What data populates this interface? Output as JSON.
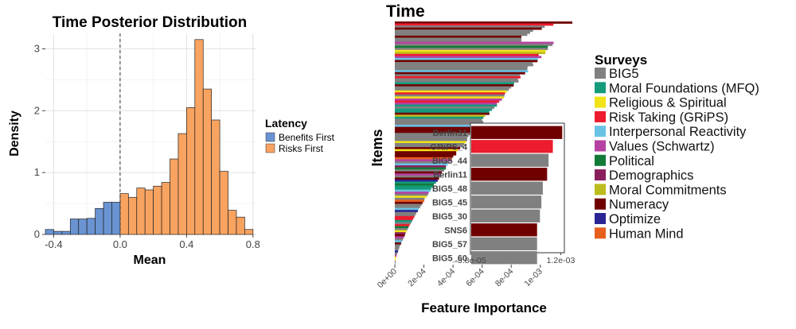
{
  "chart_data": [
    {
      "type": "bar",
      "subtype": "histogram",
      "title": "Time Posterior Distribution",
      "xlabel": "Mean",
      "ylabel": "Density",
      "xlim": [
        -0.45,
        0.82
      ],
      "ylim": [
        0,
        3.25
      ],
      "x_ticks": [
        "-0.4",
        "0.0",
        "0.4",
        "0.8"
      ],
      "x_tick_values": [
        -0.4,
        0.0,
        0.4,
        0.8
      ],
      "y_ticks": [
        "0",
        "1",
        "2",
        "3"
      ],
      "y_tick_values": [
        0,
        1,
        2,
        3
      ],
      "grid": true,
      "reference_line_x": 0,
      "legend": {
        "title": "Latency",
        "position": "right",
        "entries": [
          "Benefits First",
          "Risks First"
        ]
      },
      "series": [
        {
          "name": "Benefits First",
          "color": "#6a93d2",
          "bins": [
            [
              -0.45,
              -0.4
            ],
            [
              -0.4,
              -0.35
            ],
            [
              -0.35,
              -0.3
            ],
            [
              -0.3,
              -0.25
            ],
            [
              -0.25,
              -0.2
            ],
            [
              -0.2,
              -0.15
            ],
            [
              -0.15,
              -0.1
            ],
            [
              -0.1,
              -0.05
            ],
            [
              -0.05,
              0.0
            ]
          ],
          "values": [
            0.08,
            0.05,
            0.05,
            0.25,
            0.25,
            0.26,
            0.42,
            0.52,
            0.52
          ]
        },
        {
          "name": "Risks First",
          "color": "#f9a361",
          "bins": [
            [
              0.0,
              0.05
            ],
            [
              0.05,
              0.1
            ],
            [
              0.1,
              0.15
            ],
            [
              0.15,
              0.2
            ],
            [
              0.2,
              0.25
            ],
            [
              0.25,
              0.3
            ],
            [
              0.3,
              0.35
            ],
            [
              0.35,
              0.4
            ],
            [
              0.4,
              0.45
            ],
            [
              0.45,
              0.5
            ],
            [
              0.5,
              0.55
            ],
            [
              0.55,
              0.6
            ],
            [
              0.6,
              0.65
            ],
            [
              0.65,
              0.7
            ],
            [
              0.7,
              0.75
            ],
            [
              0.75,
              0.8
            ]
          ],
          "values": [
            0.66,
            0.6,
            0.75,
            0.72,
            0.78,
            0.84,
            1.22,
            1.63,
            2.05,
            3.15,
            2.35,
            1.85,
            1.02,
            0.39,
            0.28,
            0.08
          ]
        }
      ]
    },
    {
      "type": "bar",
      "orientation": "horizontal",
      "title": "Time",
      "xlabel": "Feature Importance",
      "ylabel": "Items",
      "xlim": [
        -6e-05,
        0.00128
      ],
      "x_ticks": [
        "0e+00",
        "2e-04",
        "4e-04",
        "6e-04",
        "8e-04",
        "1e-03"
      ],
      "x_tick_values": [
        0,
        0.0002,
        0.0004,
        0.0006,
        0.0008,
        0.001
      ],
      "sorted_descending": true,
      "item_count": 120,
      "max_value": 0.00122,
      "legend": {
        "title": "Surveys",
        "position": "right",
        "entries": [
          {
            "label": "BIG5",
            "color": "#808080"
          },
          {
            "label": "Moral Foundations (MFQ)",
            "color": "#149b7c"
          },
          {
            "label": "Religious & Spiritual",
            "color": "#f2e318"
          },
          {
            "label": "Risk Taking (GRiPS)",
            "color": "#ed1c2e"
          },
          {
            "label": "Interpersonal Reactivity",
            "color": "#69c3e6"
          },
          {
            "label": "Values (Schwartz)",
            "color": "#b541a2"
          },
          {
            "label": "Political",
            "color": "#117a37"
          },
          {
            "label": "Demographics",
            "color": "#8a1e5c"
          },
          {
            "label": "Moral Commitments",
            "color": "#bdbc1e"
          },
          {
            "label": "Numeracy",
            "color": "#700000"
          },
          {
            "label": "Optimize",
            "color": "#2b2593"
          },
          {
            "label": "Human Mind",
            "color": "#e85f1d"
          }
        ]
      },
      "inset": {
        "xlim": [
          -5.8e-05,
          0.0012
        ],
        "x_ticks": [
          "-5.8e-05",
          "1.2e-03"
        ],
        "items": [
          {
            "label": "Berlin31",
            "value": 0.00122,
            "survey": "Numeracy",
            "color": "#700000"
          },
          {
            "label": "GRiPS_4",
            "value": 0.00109,
            "survey": "Risk Taking (GRiPS)",
            "color": "#ed1c2e"
          },
          {
            "label": "BIG5_44",
            "value": 0.00103,
            "survey": "BIG5",
            "color": "#808080"
          },
          {
            "label": "Berlin11",
            "value": 0.00101,
            "survey": "Numeracy",
            "color": "#700000"
          },
          {
            "label": "BIG5_48",
            "value": 0.00095,
            "survey": "BIG5",
            "color": "#808080"
          },
          {
            "label": "BIG5_45",
            "value": 0.00093,
            "survey": "BIG5",
            "color": "#808080"
          },
          {
            "label": "BIG5_30",
            "value": 0.00091,
            "survey": "BIG5",
            "color": "#808080"
          },
          {
            "label": "SNS6",
            "value": 0.00087,
            "survey": "Numeracy",
            "color": "#700000"
          },
          {
            "label": "BIG5_57",
            "value": 0.00087,
            "survey": "BIG5",
            "color": "#808080"
          },
          {
            "label": "BIG5_60",
            "value": 0.00087,
            "survey": "BIG5",
            "color": "#808080"
          }
        ]
      }
    }
  ]
}
